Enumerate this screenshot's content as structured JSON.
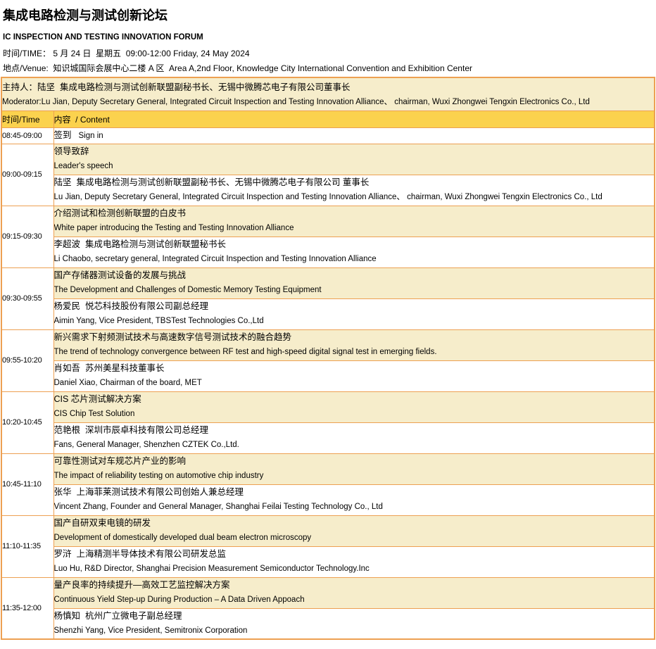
{
  "colors": {
    "border_accent": "#EDA052",
    "header_background": "#FBD24E",
    "topic_background": "#F6EDCB",
    "text": "#000000"
  },
  "page": {
    "title_cn": "集成电路检测与测试创新论坛",
    "title_en": "IC INSPECTION AND TESTING INNOVATION FORUM",
    "time_line": "时间/TIME： 5 月 24 日  星期五  09:00-12:00 Friday, 24 May 2024",
    "venue_line": "地点/Venue:  知识城国际会展中心二楼 A 区  Area A,2nd Floor, Knowledge City International Convention and Exhibition Center"
  },
  "moderator": {
    "line_cn": "主持人：陆坚  集成电路检测与测试创新联盟副秘书长、无锡中微腾芯电子有限公司董事长",
    "line_en": "Moderator:Lu Jian, Deputy Secretary General, Integrated Circuit Inspection and Testing Innovation Alliance、 chairman, Wuxi Zhongwei Tengxin Electronics Co., Ltd"
  },
  "table": {
    "header": {
      "time": "时间/Time",
      "content": "内容  / Content"
    },
    "rows": [
      {
        "time": "08:45-09:00",
        "cn": "签到",
        "en": "Sign in"
      },
      {
        "time": "09:00-09:15",
        "topic_cn": "领导致辞",
        "topic_en": "Leader's speech",
        "speaker_cn": "陆坚  集成电路检测与测试创新联盟副秘书长、无锡中微腾芯电子有限公司 董事长",
        "speaker_en": "Lu Jian, Deputy Secretary General, Integrated Circuit Inspection and Testing Innovation Alliance、 chairman, Wuxi Zhongwei Tengxin Electronics Co., Ltd"
      },
      {
        "time": "09:15-09:30",
        "topic_cn": "介绍测试和检测创新联盟的白皮书",
        "topic_en": "White paper introducing the Testing and Testing Innovation Alliance",
        "speaker_cn": "李超波  集成电路检测与测试创新联盟秘书长",
        "speaker_en": "Li Chaobo, secretary general, Integrated Circuit Inspection and Testing Innovation Alliance"
      },
      {
        "time": "09:30-09:55",
        "topic_cn": "国产存储器测试设备的发展与挑战",
        "topic_en": "The Development and Challenges of Domestic Memory Testing Equipment",
        "speaker_cn": "杨爱民  悦芯科技股份有限公司副总经理",
        "speaker_en": "Aimin Yang, Vice President, TBSTest Technologies Co.,Ltd"
      },
      {
        "time": "09:55-10:20",
        "topic_cn": "新兴需求下射频测试技术与高速数字信号测试技术的融合趋势",
        "topic_en": "The trend of technology convergence between RF test and high-speed digital signal test in emerging fields.",
        "speaker_cn": "肖如吾  苏州美星科技董事长",
        "speaker_en": "Daniel Xiao, Chairman of the board, MET"
      },
      {
        "time": "10:20-10:45",
        "topic_cn": "CIS 芯片测试解决方案",
        "topic_en": "CIS Chip Test Solution",
        "speaker_cn": "范艳根  深圳市辰卓科技有限公司总经理",
        "speaker_en": "Fans, General Manager, Shenzhen CZTEK Co.,Ltd."
      },
      {
        "time": "10:45-11:10",
        "topic_cn": "可靠性测试对车规芯片产业的影响",
        "topic_en": "The impact of reliability testing on automotive chip industry",
        "speaker_cn": "张华  上海菲莱测试技术有限公司创始人兼总经理",
        "speaker_en": "Vincent Zhang, Founder and General Manager, Shanghai Feilai Testing Technology Co., Ltd"
      },
      {
        "time": "11:10-11:35",
        "topic_cn": "国产自研双束电镜的研发",
        "topic_en": "Development of domestically developed dual beam electron microscopy",
        "speaker_cn": "罗浒  上海精测半导体技术有限公司研发总监",
        "speaker_en": "Luo Hu, R&D Director, Shanghai Precision Measurement Semiconductor Technology.Inc"
      },
      {
        "time": "11:35-12:00",
        "topic_cn": "量产良率的持续提升—高效工艺监控解决方案",
        "topic_en": "Continuous Yield Step-up During Production – A Data Driven Appoach",
        "speaker_cn": "杨慎知  杭州广立微电子副总经理",
        "speaker_en": "Shenzhi Yang, Vice President, Semitronix Corporation"
      }
    ]
  }
}
